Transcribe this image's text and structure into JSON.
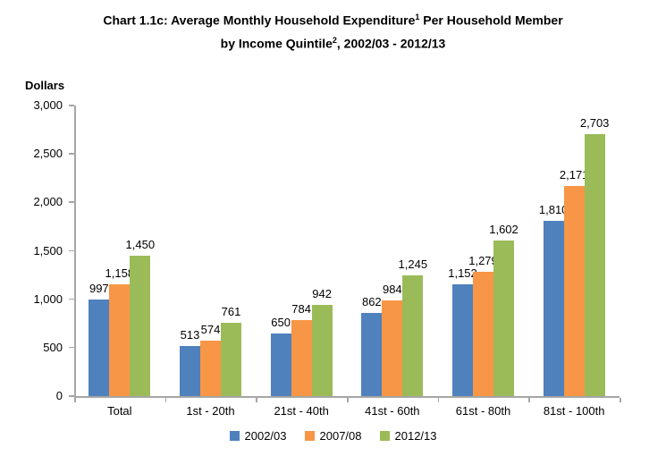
{
  "title": {
    "line1_pre": "Chart 1.1c: Average Monthly Household Expenditure",
    "line1_sup": "1",
    "line1_post": " Per Household Member",
    "line2_pre": "by Income Quintile",
    "line2_sup": "2",
    "line2_post": ", 2002/03 - 2012/13"
  },
  "colors": {
    "background": "#ffffff",
    "axis_line": "#a6a6a6",
    "text": "#000000",
    "series_2002_03": "#4f81bd",
    "series_2007_08": "#f79646",
    "series_2012_13": "#9bbb59"
  },
  "chart_data": {
    "type": "bar",
    "title": "Chart 1.1c: Average Monthly Household Expenditure¹ Per Household Member by Income Quintile², 2002/03 - 2012/13",
    "xlabel": "",
    "ylabel": "Dollars",
    "ylim": [
      0,
      3000
    ],
    "ytick_step": 500,
    "yticks": [
      0,
      500,
      1000,
      1500,
      2000,
      2500,
      3000
    ],
    "ytick_labels": [
      "0",
      "500",
      "1,000",
      "1,500",
      "2,000",
      "2,500",
      "3,000"
    ],
    "grid": false,
    "data_labels": true,
    "legend_position": "bottom",
    "categories": [
      "Total",
      "1st - 20th",
      "21st - 40th",
      "41st - 60th",
      "61st - 80th",
      "81st - 100th"
    ],
    "series": [
      {
        "name": "2002/03",
        "color": "#4f81bd",
        "values": [
          997,
          513,
          650,
          862,
          1152,
          1810
        ]
      },
      {
        "name": "2007/08",
        "color": "#f79646",
        "values": [
          1158,
          574,
          784,
          984,
          1279,
          2171
        ]
      },
      {
        "name": "2012/13",
        "color": "#9bbb59",
        "values": [
          1450,
          761,
          942,
          1245,
          1602,
          2703
        ]
      }
    ]
  }
}
